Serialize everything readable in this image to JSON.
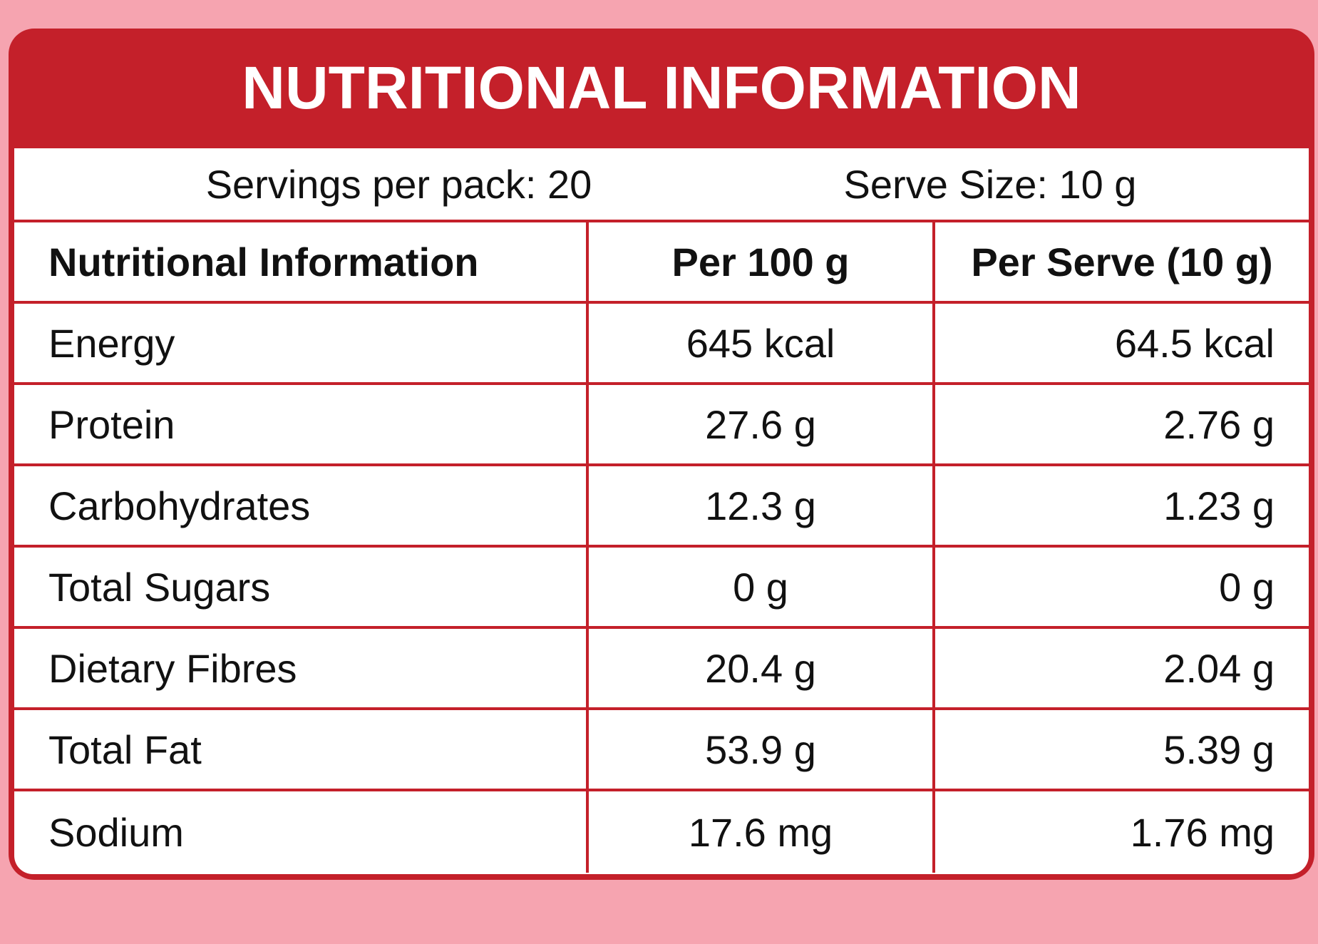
{
  "title": "NUTRITIONAL INFORMATION",
  "serving": {
    "servings_per_pack": "Servings per pack: 20",
    "serve_size": "Serve Size: 10 g"
  },
  "table": {
    "headers": [
      "Nutritional Information",
      "Per 100 g",
      "Per Serve (10 g)"
    ],
    "rows": [
      [
        "Energy",
        "645 kcal",
        "64.5 kcal"
      ],
      [
        "Protein",
        "27.6 g",
        "2.76 g"
      ],
      [
        "Carbohydrates",
        "12.3 g",
        "1.23 g"
      ],
      [
        "Total Sugars",
        "0 g",
        "0 g"
      ],
      [
        "Dietary Fibres",
        "20.4 g",
        "2.04 g"
      ],
      [
        "Total Fat",
        "53.9 g",
        "5.39 g"
      ],
      [
        "Sodium",
        "17.6 mg",
        "1.76 mg"
      ]
    ]
  },
  "colors": {
    "background": "#f6a4b0",
    "accent": "#c4202a",
    "panel": "#ffffff",
    "text": "#111111"
  }
}
